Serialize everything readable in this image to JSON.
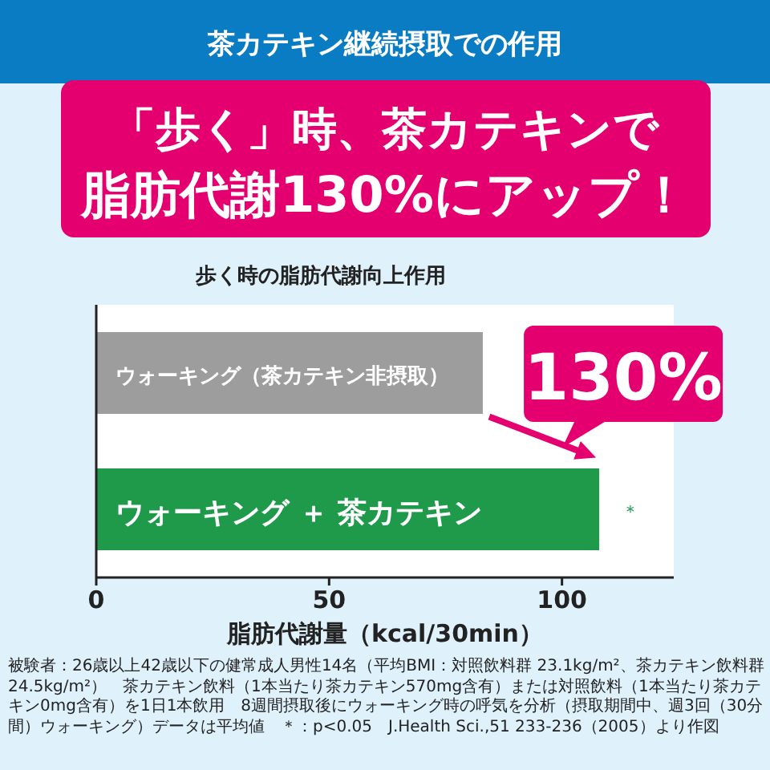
{
  "chart_data": {
    "type": "bar",
    "orientation": "horizontal",
    "title": "茶カテキン継続摂取での作用",
    "subtitle": "歩く時の脂肪代謝向上作用",
    "xlabel": "脂肪代謝量（kcal/30min）",
    "categories": [
      "ウォーキング（茶カテキン非摂取）",
      "ウォーキング ＋ 茶カテキン"
    ],
    "values": [
      83,
      108
    ],
    "colors": [
      "#9d9d9d",
      "#1f9a4b"
    ],
    "xlim": [
      0,
      124
    ],
    "xticks": [
      0,
      50,
      100
    ],
    "annotations": [
      "「歩く」時、茶カテキンで",
      "脂肪代謝130%にアップ！",
      {
        "text": "130%",
        "x": 108,
        "y": "ウォーキング ＋ 茶カテキン"
      },
      {
        "text": "＊",
        "x": 108,
        "y": "ウォーキング ＋ 茶カテキン"
      },
      "被験者：26歳以上42歳以下の健常成人男性14名（平均BMI：対照飲料群 23.1kg/m²、茶カテキン飲料群 24.5kg/m²）　茶カテキン飲料（1本当たり茶カテキン570mg含有）または対照飲料（1本当たり茶カテキン0mg含有）を1日1本飲用　8週間摂取後にウォーキング時の呼気を分析（摂取期間中、週3回（30分間）ウォーキング）データは平均値　＊：p<0.05　J.Health Sci.,51 233-236（2005）より作図"
    ]
  }
}
